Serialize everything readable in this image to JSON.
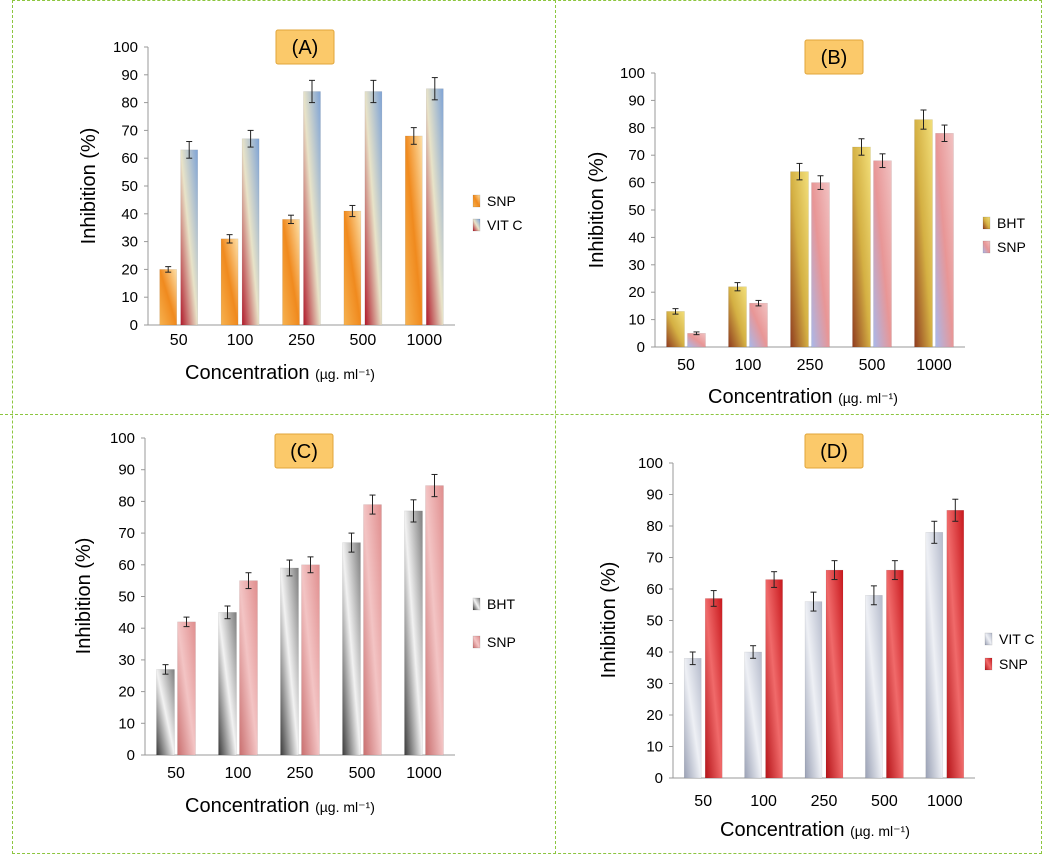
{
  "chart_data": [
    {
      "type": "bar",
      "panel_label": "(A)",
      "categories": [
        "50",
        "100",
        "250",
        "500",
        "1000"
      ],
      "series": [
        {
          "name": "SNP",
          "values": [
            20,
            31,
            38,
            41,
            68
          ],
          "errors": [
            1,
            1.5,
            1.5,
            2,
            3
          ]
        },
        {
          "name": "VIT C",
          "values": [
            63,
            67,
            84,
            84,
            85
          ],
          "errors": [
            3,
            3,
            4,
            4,
            4
          ]
        }
      ],
      "ylabel": "Inhibition (%)",
      "xlabel": "Concentration",
      "xunit": "(µg. ml⁻¹)",
      "ylim": [
        0,
        100
      ],
      "yticks": [
        0,
        10,
        20,
        30,
        40,
        50,
        60,
        70,
        80,
        90,
        100
      ],
      "legend": "right",
      "grid": false,
      "colors": {
        "SNP": "#f39a2e",
        "VIT C": "#8fb3e0",
        "VIT C low": "#c8313a"
      }
    },
    {
      "type": "bar",
      "panel_label": "(B)",
      "categories": [
        "50",
        "100",
        "250",
        "500",
        "1000"
      ],
      "series": [
        {
          "name": "BHT",
          "values": [
            13,
            22,
            64,
            73,
            83
          ],
          "errors": [
            1,
            1.5,
            3,
            3,
            3.5
          ]
        },
        {
          "name": "SNP",
          "values": [
            5,
            16,
            60,
            68,
            78
          ],
          "errors": [
            0.5,
            1,
            2.5,
            2.5,
            3
          ]
        }
      ],
      "ylabel": "Inhibition (%)",
      "xlabel": "Concentration",
      "xunit": "(µg. ml⁻¹)",
      "ylim": [
        0,
        100
      ],
      "yticks": [
        0,
        10,
        20,
        30,
        40,
        50,
        60,
        70,
        80,
        90,
        100
      ],
      "legend": "right",
      "grid": false,
      "colors": {
        "BHT": "#e2c24a",
        "BHT low": "#a8522a",
        "SNP": "#e99a9a",
        "SNP low": "#b8c6ee"
      }
    },
    {
      "type": "bar",
      "panel_label": "(C)",
      "categories": [
        "50",
        "100",
        "250",
        "500",
        "1000"
      ],
      "series": [
        {
          "name": "BHT",
          "values": [
            27,
            45,
            59,
            67,
            77
          ],
          "errors": [
            1.5,
            2,
            2.5,
            3,
            3.5
          ]
        },
        {
          "name": "SNP",
          "values": [
            42,
            55,
            60,
            79,
            85
          ],
          "errors": [
            1.5,
            2.5,
            2.5,
            3,
            3.5
          ]
        }
      ],
      "ylabel": "Inhibition (%)",
      "xlabel": "Concentration",
      "xunit": "(µg. ml⁻¹)",
      "ylim": [
        0,
        100
      ],
      "yticks": [
        0,
        10,
        20,
        30,
        40,
        50,
        60,
        70,
        80,
        90,
        100
      ],
      "legend": "right",
      "grid": false,
      "colors": {
        "BHT": "#6f6f6f",
        "SNP": "#d98a8a"
      }
    },
    {
      "type": "bar",
      "panel_label": "(D)",
      "categories": [
        "50",
        "100",
        "250",
        "500",
        "1000"
      ],
      "series": [
        {
          "name": "VIT C",
          "values": [
            38,
            40,
            56,
            58,
            78
          ],
          "errors": [
            2,
            2,
            3,
            3,
            3.5
          ]
        },
        {
          "name": "SNP",
          "values": [
            57,
            63,
            66,
            66,
            85
          ],
          "errors": [
            2.5,
            2.5,
            3,
            3,
            3.5
          ]
        }
      ],
      "ylabel": "Inhibition (%)",
      "xlabel": "Concentration",
      "xunit": "(µg. ml⁻¹)",
      "ylim": [
        0,
        100
      ],
      "yticks": [
        0,
        10,
        20,
        30,
        40,
        50,
        60,
        70,
        80,
        90,
        100
      ],
      "legend": "right",
      "grid": false,
      "colors": {
        "VIT C": "#b9bfd0",
        "SNP": "#d8272a"
      }
    }
  ]
}
